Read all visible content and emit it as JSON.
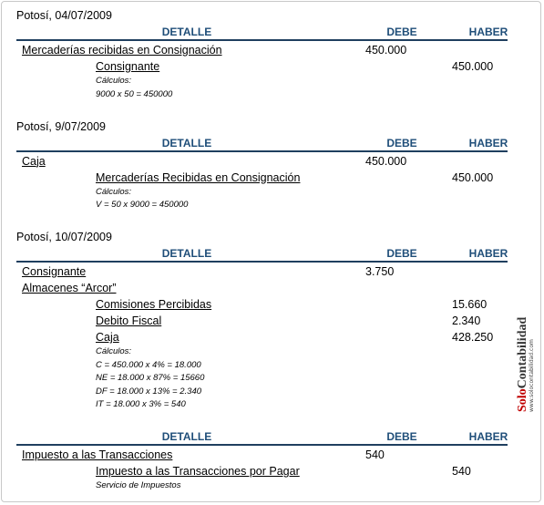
{
  "entries": [
    {
      "date": "Potosí, 04/07/2009",
      "header": {
        "detalle": "DETALLE",
        "debe": "DEBE",
        "haber": "HABER"
      },
      "debits": [
        {
          "account": "Mercaderías recibidas en Consignación",
          "amount": "450.000"
        }
      ],
      "credits": [
        {
          "account": "Consignante",
          "amount": "450.000"
        }
      ],
      "notes": [
        "Cálculos:",
        "9000 x 50 = 450000"
      ]
    },
    {
      "date": "Potosí, 9/07/2009",
      "header": {
        "detalle": "DETALLE",
        "debe": "DEBE",
        "haber": "HABER"
      },
      "debits": [
        {
          "account": "Caja",
          "amount": "450.000"
        }
      ],
      "credits": [
        {
          "account": "Mercaderías Recibidas en Consignación",
          "amount": "450.000"
        }
      ],
      "notes": [
        "Cálculos:",
        "V = 50 x 9000 = 450000"
      ]
    },
    {
      "date": "Potosí, 10/07/2009",
      "header": {
        "detalle": "DETALLE",
        "debe": "DEBE",
        "haber": "HABER"
      },
      "debits": [
        {
          "account": "Consignante",
          "amount": "3.750"
        },
        {
          "account": "Almacenes “Arcor”"
        }
      ],
      "credits": [
        {
          "account": "Comisiones Percibidas",
          "amount": "15.660"
        },
        {
          "account": "Debito Fiscal",
          "amount": "2.340"
        },
        {
          "account": "Caja",
          "amount": "428.250"
        }
      ],
      "notes": [
        "Cálculos:",
        "C = 450.000 x 4% = 18.000",
        "NE = 18.000 x 87% = 15660",
        "DF = 18.000 x 13% = 2.340",
        "IT = 18.000 x 3% = 540"
      ]
    },
    {
      "header": {
        "detalle": "DETALLE",
        "debe": "DEBE",
        "haber": "HABER"
      },
      "debits": [
        {
          "account": "Impuesto a las Transacciones",
          "amount": "540"
        }
      ],
      "credits": [
        {
          "account": "Impuesto a las Transacciones por Pagar",
          "amount": "540"
        }
      ],
      "notes": [
        "Servicio de Impuestos"
      ]
    }
  ],
  "watermark": {
    "brand_prefix": "Solo",
    "brand_suffix": "Contabilidad",
    "url": "www.solocontabilidad.com"
  }
}
